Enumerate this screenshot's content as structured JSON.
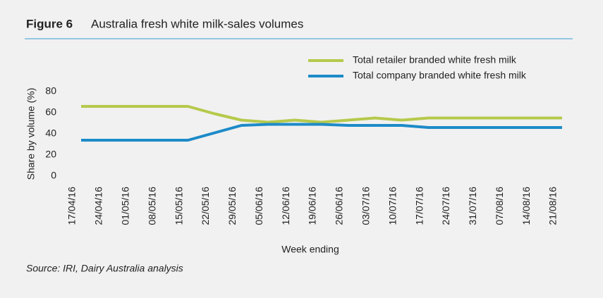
{
  "chart_data": {
    "type": "line",
    "figure_label": "Figure 6",
    "title": "Australia fresh white milk-sales volumes",
    "y_label": "Share by volume (%)",
    "x_label": "Week ending",
    "source": "Source: IRI, Dairy Australia analysis",
    "categories": [
      "17/04/16",
      "24/04/16",
      "01/05/16",
      "08/05/16",
      "15/05/16",
      "22/05/16",
      "29/05/16",
      "05/06/16",
      "12/06/16",
      "19/06/16",
      "26/06/16",
      "03/07/16",
      "10/07/16",
      "17/07/16",
      "24/07/16",
      "31/07/16",
      "07/08/16",
      "14/08/16",
      "21/08/16"
    ],
    "series": [
      {
        "name": "Total retailer branded white fresh milk",
        "color": "#b6c94b",
        "values": [
          66,
          66,
          66,
          66,
          66,
          59,
          53,
          51,
          53,
          51,
          53,
          55,
          53,
          55,
          55,
          55,
          55,
          55,
          55
        ]
      },
      {
        "name": "Total company branded white fresh milk",
        "color": "#1d8bc8",
        "values": [
          34,
          34,
          34,
          34,
          34,
          41,
          48,
          49,
          49,
          49,
          48,
          48,
          48,
          46,
          46,
          46,
          46,
          46,
          46
        ]
      }
    ],
    "ylim": [
      0,
      80
    ],
    "yticks": [
      0,
      20,
      40,
      60,
      80
    ],
    "grid": false
  }
}
